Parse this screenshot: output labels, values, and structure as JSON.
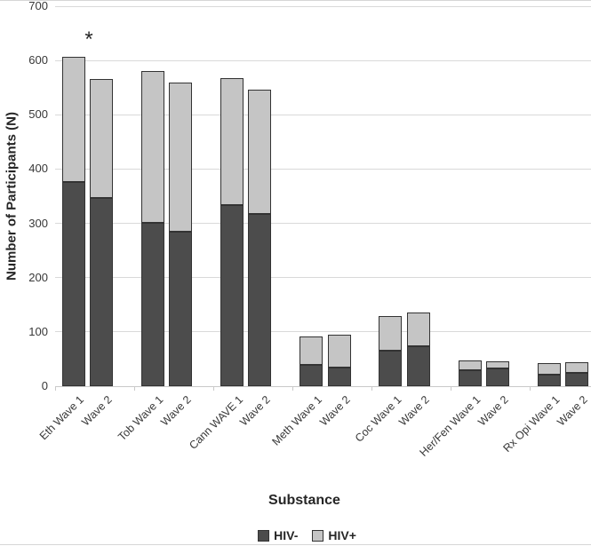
{
  "chart_data": {
    "type": "bar",
    "stacked": true,
    "title": "",
    "xlabel": "Substance",
    "ylabel": "Number of Participants (N)",
    "ylim": [
      0,
      700
    ],
    "yticks": [
      0,
      100,
      200,
      300,
      400,
      500,
      600,
      700
    ],
    "grid": true,
    "legend_position": "bottom",
    "categories": [
      "Eth Wave 1",
      "Wave 2",
      "Tob Wave 1",
      "Wave 2",
      "Cann WAVE 1",
      "Wave 2",
      "Meth Wave 1",
      "Wave 2",
      "Coc Wave 1",
      "Wave 2",
      "Her/Fen Wave 1",
      "Wave 2",
      "Rx Opi Wave 1",
      "Wave 2"
    ],
    "series": [
      {
        "name": "HIV-",
        "color": "#4c4c4c",
        "border_color": "#333333",
        "values": [
          376,
          346,
          301,
          284,
          333,
          318,
          39,
          35,
          66,
          73,
          30,
          33,
          22,
          24
        ]
      },
      {
        "name": "HIV+",
        "color": "#c5c5c5",
        "border_color": "#333333",
        "values": [
          231,
          220,
          279,
          275,
          234,
          229,
          52,
          60,
          64,
          63,
          17,
          13,
          20,
          20
        ]
      }
    ],
    "bar_totals": [
      607,
      566,
      580,
      559,
      567,
      547,
      91,
      95,
      130,
      136,
      47,
      46,
      42,
      44
    ],
    "annotations": [
      {
        "text": "*",
        "above_category": "Eth Wave 1"
      }
    ]
  },
  "legend": {
    "items": [
      {
        "label": "HIV-",
        "color": "#4c4c4c"
      },
      {
        "label": "HIV+",
        "color": "#c5c5c5"
      }
    ]
  }
}
